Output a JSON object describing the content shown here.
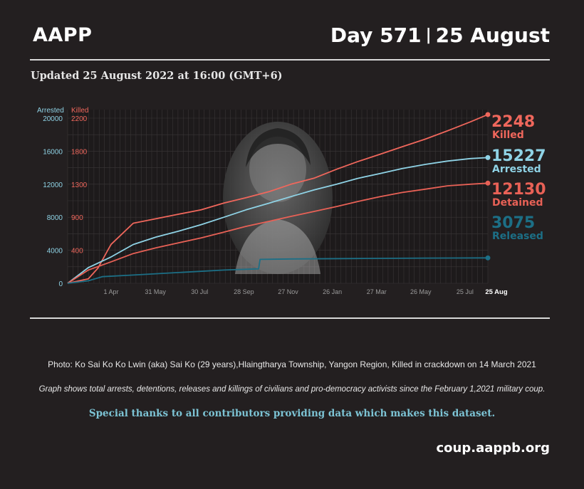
{
  "header": {
    "brand": "AAPP",
    "day": "Day 571",
    "separator": "|",
    "date": "25 August"
  },
  "updated": "Updated 25 August 2022 at 16:00 (GMT+6)",
  "photo": {
    "description_icon": "portrait-photo"
  },
  "caption": "Photo: Ko Sai Ko Ko Lwin (aka) Sai Ko (29 years),Hlaingtharya Township, Yangon Region, Killed in crackdown on 14 March 2021",
  "note": "Graph shows total arrests, detentions, releases and killings of civilians and pro-democracy activists since the February 1,2021 military coup.",
  "thanks": "Special thanks to all contributors providing data which makes this dataset.",
  "site": "coup.aappb.org",
  "colors": {
    "arrested": "#8fd3e6",
    "killed": "#f0675c",
    "detained": "#e86156",
    "released": "#1c6f86",
    "background": "#231f20",
    "plot_bg": "#1d1a1b"
  },
  "chart_data": {
    "type": "line",
    "x_ticks": [
      "1 Apr",
      "31 May",
      "30 Jul",
      "28 Sep",
      "27 Nov",
      "26 Jan",
      "27 Mar",
      "26 May",
      "25 Jul",
      "25 Aug"
    ],
    "left_axis": {
      "label": "Arrested",
      "ticks": [
        "20000",
        "16000",
        "12000",
        "8000",
        "4000",
        "0"
      ],
      "range": [
        0,
        20000
      ]
    },
    "right_axis": {
      "label": "Killed",
      "ticks": [
        "2200",
        "1800",
        "1300",
        "900",
        "400"
      ],
      "range": [
        0,
        2200
      ]
    },
    "grid": true,
    "end_labels": [
      {
        "value": "2248",
        "name": "Killed"
      },
      {
        "value": "15227",
        "name": "Arrested"
      },
      {
        "value": "12130",
        "name": "Detained"
      },
      {
        "value": "3075",
        "name": "Released"
      }
    ],
    "series": [
      {
        "name": "Killed",
        "axis": "right",
        "x": [
          "2021-02-01",
          "2021-03-01",
          "2021-03-14",
          "2021-03-28",
          "2021-04-01",
          "2021-05-01",
          "2021-06-01",
          "2021-07-01",
          "2021-08-01",
          "2021-09-01",
          "2021-10-01",
          "2021-11-01",
          "2021-12-01",
          "2022-01-01",
          "2022-02-01",
          "2022-03-01",
          "2022-04-01",
          "2022-05-01",
          "2022-06-01",
          "2022-07-01",
          "2022-08-01",
          "2022-08-25"
        ],
        "values": [
          0,
          60,
          200,
          450,
          520,
          800,
          860,
          920,
          980,
          1070,
          1140,
          1220,
          1320,
          1400,
          1520,
          1620,
          1720,
          1820,
          1920,
          2030,
          2150,
          2248
        ]
      },
      {
        "name": "Arrested",
        "axis": "left",
        "x": [
          "2021-02-01",
          "2021-03-01",
          "2021-04-01",
          "2021-05-01",
          "2021-06-01",
          "2021-07-01",
          "2021-08-01",
          "2021-09-01",
          "2021-10-01",
          "2021-11-01",
          "2021-12-01",
          "2022-01-01",
          "2022-02-01",
          "2022-03-01",
          "2022-04-01",
          "2022-05-01",
          "2022-06-01",
          "2022-07-01",
          "2022-08-01",
          "2022-08-25"
        ],
        "values": [
          0,
          1900,
          3200,
          4700,
          5600,
          6300,
          7100,
          8000,
          8900,
          9700,
          10500,
          11300,
          12000,
          12700,
          13300,
          13900,
          14400,
          14800,
          15100,
          15227
        ]
      },
      {
        "name": "Detained",
        "axis": "left",
        "x": [
          "2021-02-01",
          "2021-03-01",
          "2021-04-01",
          "2021-05-01",
          "2021-06-01",
          "2021-07-01",
          "2021-08-01",
          "2021-09-01",
          "2021-10-01",
          "2021-11-01",
          "2021-12-01",
          "2022-01-01",
          "2022-02-01",
          "2022-03-01",
          "2022-04-01",
          "2022-05-01",
          "2022-06-01",
          "2022-07-01",
          "2022-08-01",
          "2022-08-25"
        ],
        "values": [
          0,
          1600,
          2600,
          3600,
          4300,
          4900,
          5500,
          6200,
          6900,
          7500,
          8100,
          8700,
          9300,
          9900,
          10500,
          11000,
          11400,
          11800,
          12000,
          12130
        ]
      },
      {
        "name": "Released",
        "axis": "left",
        "x": [
          "2021-02-01",
          "2021-03-01",
          "2021-03-20",
          "2021-05-01",
          "2021-07-01",
          "2021-09-01",
          "2021-10-18",
          "2021-10-20",
          "2021-12-01",
          "2022-03-01",
          "2022-06-01",
          "2022-08-25"
        ],
        "values": [
          0,
          300,
          800,
          1000,
          1300,
          1600,
          1750,
          2900,
          2950,
          3000,
          3050,
          3075
        ]
      }
    ]
  }
}
